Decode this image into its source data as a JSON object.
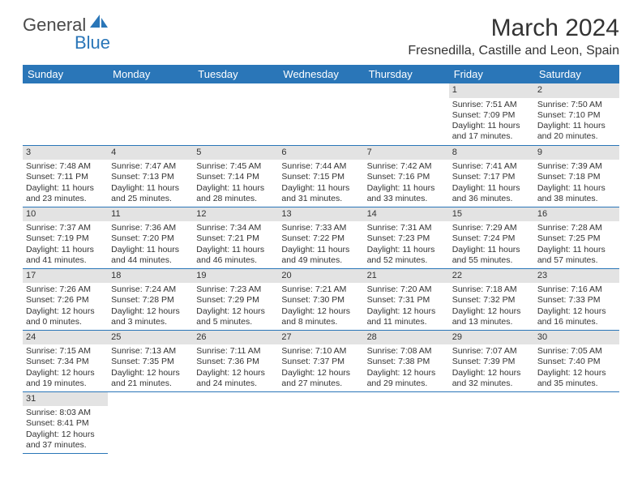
{
  "logo": {
    "word1": "General",
    "word2": "Blue"
  },
  "title": "March 2024",
  "location": "Fresnedilla, Castille and Leon, Spain",
  "colors": {
    "brand": "#2a76b8",
    "header_bg": "#2a76b8",
    "dayhead_bg": "#e3e3e3",
    "border": "#2a76b8"
  },
  "weekdays": [
    "Sunday",
    "Monday",
    "Tuesday",
    "Wednesday",
    "Thursday",
    "Friday",
    "Saturday"
  ],
  "weeks": [
    [
      null,
      null,
      null,
      null,
      null,
      {
        "n": "1",
        "sr": "Sunrise: 7:51 AM",
        "ss": "Sunset: 7:09 PM",
        "dl": "Daylight: 11 hours and 17 minutes."
      },
      {
        "n": "2",
        "sr": "Sunrise: 7:50 AM",
        "ss": "Sunset: 7:10 PM",
        "dl": "Daylight: 11 hours and 20 minutes."
      }
    ],
    [
      {
        "n": "3",
        "sr": "Sunrise: 7:48 AM",
        "ss": "Sunset: 7:11 PM",
        "dl": "Daylight: 11 hours and 23 minutes."
      },
      {
        "n": "4",
        "sr": "Sunrise: 7:47 AM",
        "ss": "Sunset: 7:13 PM",
        "dl": "Daylight: 11 hours and 25 minutes."
      },
      {
        "n": "5",
        "sr": "Sunrise: 7:45 AM",
        "ss": "Sunset: 7:14 PM",
        "dl": "Daylight: 11 hours and 28 minutes."
      },
      {
        "n": "6",
        "sr": "Sunrise: 7:44 AM",
        "ss": "Sunset: 7:15 PM",
        "dl": "Daylight: 11 hours and 31 minutes."
      },
      {
        "n": "7",
        "sr": "Sunrise: 7:42 AM",
        "ss": "Sunset: 7:16 PM",
        "dl": "Daylight: 11 hours and 33 minutes."
      },
      {
        "n": "8",
        "sr": "Sunrise: 7:41 AM",
        "ss": "Sunset: 7:17 PM",
        "dl": "Daylight: 11 hours and 36 minutes."
      },
      {
        "n": "9",
        "sr": "Sunrise: 7:39 AM",
        "ss": "Sunset: 7:18 PM",
        "dl": "Daylight: 11 hours and 38 minutes."
      }
    ],
    [
      {
        "n": "10",
        "sr": "Sunrise: 7:37 AM",
        "ss": "Sunset: 7:19 PM",
        "dl": "Daylight: 11 hours and 41 minutes."
      },
      {
        "n": "11",
        "sr": "Sunrise: 7:36 AM",
        "ss": "Sunset: 7:20 PM",
        "dl": "Daylight: 11 hours and 44 minutes."
      },
      {
        "n": "12",
        "sr": "Sunrise: 7:34 AM",
        "ss": "Sunset: 7:21 PM",
        "dl": "Daylight: 11 hours and 46 minutes."
      },
      {
        "n": "13",
        "sr": "Sunrise: 7:33 AM",
        "ss": "Sunset: 7:22 PM",
        "dl": "Daylight: 11 hours and 49 minutes."
      },
      {
        "n": "14",
        "sr": "Sunrise: 7:31 AM",
        "ss": "Sunset: 7:23 PM",
        "dl": "Daylight: 11 hours and 52 minutes."
      },
      {
        "n": "15",
        "sr": "Sunrise: 7:29 AM",
        "ss": "Sunset: 7:24 PM",
        "dl": "Daylight: 11 hours and 55 minutes."
      },
      {
        "n": "16",
        "sr": "Sunrise: 7:28 AM",
        "ss": "Sunset: 7:25 PM",
        "dl": "Daylight: 11 hours and 57 minutes."
      }
    ],
    [
      {
        "n": "17",
        "sr": "Sunrise: 7:26 AM",
        "ss": "Sunset: 7:26 PM",
        "dl": "Daylight: 12 hours and 0 minutes."
      },
      {
        "n": "18",
        "sr": "Sunrise: 7:24 AM",
        "ss": "Sunset: 7:28 PM",
        "dl": "Daylight: 12 hours and 3 minutes."
      },
      {
        "n": "19",
        "sr": "Sunrise: 7:23 AM",
        "ss": "Sunset: 7:29 PM",
        "dl": "Daylight: 12 hours and 5 minutes."
      },
      {
        "n": "20",
        "sr": "Sunrise: 7:21 AM",
        "ss": "Sunset: 7:30 PM",
        "dl": "Daylight: 12 hours and 8 minutes."
      },
      {
        "n": "21",
        "sr": "Sunrise: 7:20 AM",
        "ss": "Sunset: 7:31 PM",
        "dl": "Daylight: 12 hours and 11 minutes."
      },
      {
        "n": "22",
        "sr": "Sunrise: 7:18 AM",
        "ss": "Sunset: 7:32 PM",
        "dl": "Daylight: 12 hours and 13 minutes."
      },
      {
        "n": "23",
        "sr": "Sunrise: 7:16 AM",
        "ss": "Sunset: 7:33 PM",
        "dl": "Daylight: 12 hours and 16 minutes."
      }
    ],
    [
      {
        "n": "24",
        "sr": "Sunrise: 7:15 AM",
        "ss": "Sunset: 7:34 PM",
        "dl": "Daylight: 12 hours and 19 minutes."
      },
      {
        "n": "25",
        "sr": "Sunrise: 7:13 AM",
        "ss": "Sunset: 7:35 PM",
        "dl": "Daylight: 12 hours and 21 minutes."
      },
      {
        "n": "26",
        "sr": "Sunrise: 7:11 AM",
        "ss": "Sunset: 7:36 PM",
        "dl": "Daylight: 12 hours and 24 minutes."
      },
      {
        "n": "27",
        "sr": "Sunrise: 7:10 AM",
        "ss": "Sunset: 7:37 PM",
        "dl": "Daylight: 12 hours and 27 minutes."
      },
      {
        "n": "28",
        "sr": "Sunrise: 7:08 AM",
        "ss": "Sunset: 7:38 PM",
        "dl": "Daylight: 12 hours and 29 minutes."
      },
      {
        "n": "29",
        "sr": "Sunrise: 7:07 AM",
        "ss": "Sunset: 7:39 PM",
        "dl": "Daylight: 12 hours and 32 minutes."
      },
      {
        "n": "30",
        "sr": "Sunrise: 7:05 AM",
        "ss": "Sunset: 7:40 PM",
        "dl": "Daylight: 12 hours and 35 minutes."
      }
    ],
    [
      {
        "n": "31",
        "sr": "Sunrise: 8:03 AM",
        "ss": "Sunset: 8:41 PM",
        "dl": "Daylight: 12 hours and 37 minutes."
      },
      null,
      null,
      null,
      null,
      null,
      null
    ]
  ]
}
